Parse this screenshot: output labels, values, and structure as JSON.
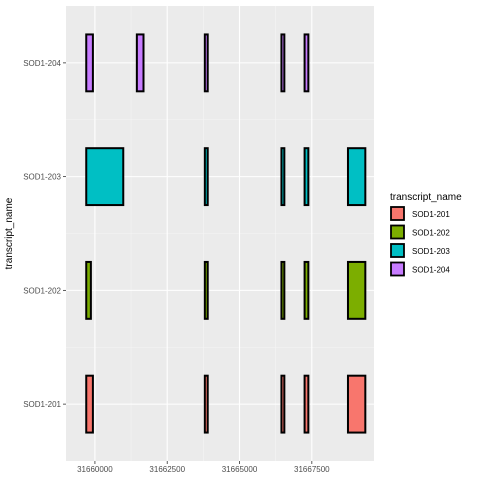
{
  "chart_data": {
    "type": "bar",
    "title": "",
    "xlabel": "",
    "ylabel": "transcript_name",
    "xlim": [
      31659000,
      31669650
    ],
    "x_ticks": [
      31660000,
      31662500,
      31665000,
      31667500
    ],
    "x_tick_labels": [
      "31660000",
      "31662500",
      "31665000",
      "31667500"
    ],
    "categories": [
      "SOD1-201",
      "SOD1-202",
      "SOD1-203",
      "SOD1-204"
    ],
    "grid": true,
    "legend": {
      "title": "transcript_name",
      "position": "right",
      "entries": [
        "SOD1-201",
        "SOD1-202",
        "SOD1-203",
        "SOD1-204"
      ]
    },
    "colors": {
      "SOD1-201": "#F8766D",
      "SOD1-202": "#7CAE00",
      "SOD1-203": "#00BFC4",
      "SOD1-204": "#C77CFF",
      "panel_background": "#EBEBEB",
      "grid_line": "#FFFFFF",
      "outline": "#000000"
    },
    "series": [
      {
        "name": "SOD1-201",
        "exons": [
          [
            31659700,
            31659930
          ],
          [
            31663800,
            31663900
          ],
          [
            31666450,
            31666550
          ],
          [
            31667250,
            31667380
          ],
          [
            31668750,
            31669350
          ]
        ]
      },
      {
        "name": "SOD1-202",
        "exons": [
          [
            31659700,
            31659860
          ],
          [
            31663800,
            31663900
          ],
          [
            31666450,
            31666550
          ],
          [
            31667250,
            31667380
          ],
          [
            31668750,
            31669350
          ]
        ]
      },
      {
        "name": "SOD1-203",
        "exons": [
          [
            31659700,
            31660980
          ],
          [
            31663800,
            31663900
          ],
          [
            31666450,
            31666550
          ],
          [
            31667250,
            31667380
          ],
          [
            31668750,
            31669350
          ]
        ]
      },
      {
        "name": "SOD1-204",
        "exons": [
          [
            31659700,
            31659930
          ],
          [
            31661450,
            31661680
          ],
          [
            31663800,
            31663900
          ],
          [
            31666450,
            31666550
          ],
          [
            31667250,
            31667380
          ]
        ]
      }
    ]
  }
}
